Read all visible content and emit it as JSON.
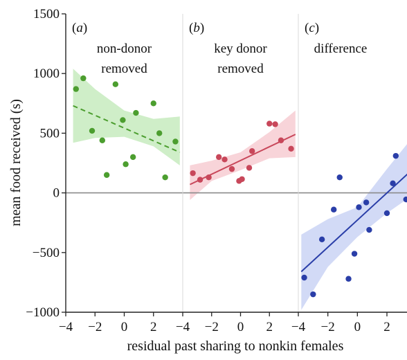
{
  "chart_data": {
    "type": "scatter",
    "xlabel": "residual past sharing to nonkin females",
    "ylabel": "mean food received (s)",
    "ylim": [
      -1000,
      1500
    ],
    "yticks": [
      1500,
      1000,
      500,
      0,
      -500,
      -1000
    ],
    "xticks": [
      "-4",
      "-2",
      "0",
      "2"
    ],
    "reference_line_y": 0,
    "panels": [
      {
        "label": "(a)",
        "title": [
          "non-donor",
          "removed"
        ],
        "color": "#4c9e2f",
        "band_color": "#bfe8b6",
        "line_style": "dashed",
        "xlim": [
          -4,
          4
        ],
        "points": [
          {
            "x": -3.3,
            "y": 870
          },
          {
            "x": -2.8,
            "y": 960
          },
          {
            "x": -2.2,
            "y": 520
          },
          {
            "x": -1.5,
            "y": 440
          },
          {
            "x": -1.2,
            "y": 150
          },
          {
            "x": -0.6,
            "y": 910
          },
          {
            "x": -0.1,
            "y": 610
          },
          {
            "x": 0.1,
            "y": 240
          },
          {
            "x": 0.6,
            "y": 300
          },
          {
            "x": 0.8,
            "y": 670
          },
          {
            "x": 2.0,
            "y": 750
          },
          {
            "x": 2.4,
            "y": 500
          },
          {
            "x": 2.8,
            "y": 130
          },
          {
            "x": 3.5,
            "y": 430
          }
        ],
        "fit": {
          "x": [
            -3.5,
            3.8
          ],
          "y": [
            730,
            340
          ]
        },
        "band": {
          "x": [
            -3.5,
            -2,
            0,
            2,
            3.8
          ],
          "lower": [
            420,
            460,
            470,
            390,
            230
          ],
          "upper": [
            1040,
            870,
            690,
            620,
            640
          ]
        }
      },
      {
        "label": "(b)",
        "title": [
          "key donor",
          "removed"
        ],
        "color": "#c8475a",
        "band_color": "#f5c6cc",
        "line_style": "solid",
        "xlim": [
          -4,
          4
        ],
        "points": [
          {
            "x": -3.3,
            "y": 165
          },
          {
            "x": -2.8,
            "y": 110
          },
          {
            "x": -2.2,
            "y": 130
          },
          {
            "x": -1.5,
            "y": 300
          },
          {
            "x": -1.1,
            "y": 280
          },
          {
            "x": -0.6,
            "y": 200
          },
          {
            "x": -0.1,
            "y": 100
          },
          {
            "x": 0.1,
            "y": 115
          },
          {
            "x": 0.6,
            "y": 210
          },
          {
            "x": 0.8,
            "y": 350
          },
          {
            "x": 2.0,
            "y": 580
          },
          {
            "x": 2.4,
            "y": 575
          },
          {
            "x": 2.8,
            "y": 440
          },
          {
            "x": 3.5,
            "y": 370
          }
        ],
        "fit": {
          "x": [
            -3.5,
            3.8
          ],
          "y": [
            70,
            490
          ]
        },
        "band": {
          "x": [
            -3.5,
            -2,
            0,
            2,
            3.8
          ],
          "lower": [
            -60,
            100,
            190,
            290,
            300
          ],
          "upper": [
            230,
            270,
            340,
            510,
            690
          ]
        }
      },
      {
        "label": "(c)",
        "title": [
          "difference"
        ],
        "color": "#2a3ea8",
        "band_color": "#c3cef3",
        "line_style": "solid",
        "xlim": [
          -4,
          3.5
        ],
        "points": [
          {
            "x": -3.6,
            "y": -710
          },
          {
            "x": -3.0,
            "y": -850
          },
          {
            "x": -2.4,
            "y": -390
          },
          {
            "x": -1.6,
            "y": -140
          },
          {
            "x": -1.2,
            "y": 130
          },
          {
            "x": -0.6,
            "y": -720
          },
          {
            "x": -0.2,
            "y": -510
          },
          {
            "x": 0.1,
            "y": -120
          },
          {
            "x": 0.6,
            "y": -80
          },
          {
            "x": 0.8,
            "y": -310
          },
          {
            "x": 2.0,
            "y": -170
          },
          {
            "x": 2.4,
            "y": 80
          },
          {
            "x": 2.6,
            "y": 310
          },
          {
            "x": 3.3,
            "y": -55
          }
        ],
        "fit": {
          "x": [
            -3.8,
            3.5
          ],
          "y": [
            -660,
            170
          ]
        },
        "band": {
          "x": [
            -3.8,
            -2,
            0,
            2,
            3.5
          ],
          "lower": [
            -980,
            -620,
            -370,
            -170,
            -40
          ],
          "upper": [
            -350,
            -220,
            -120,
            200,
            430
          ]
        }
      }
    ]
  }
}
